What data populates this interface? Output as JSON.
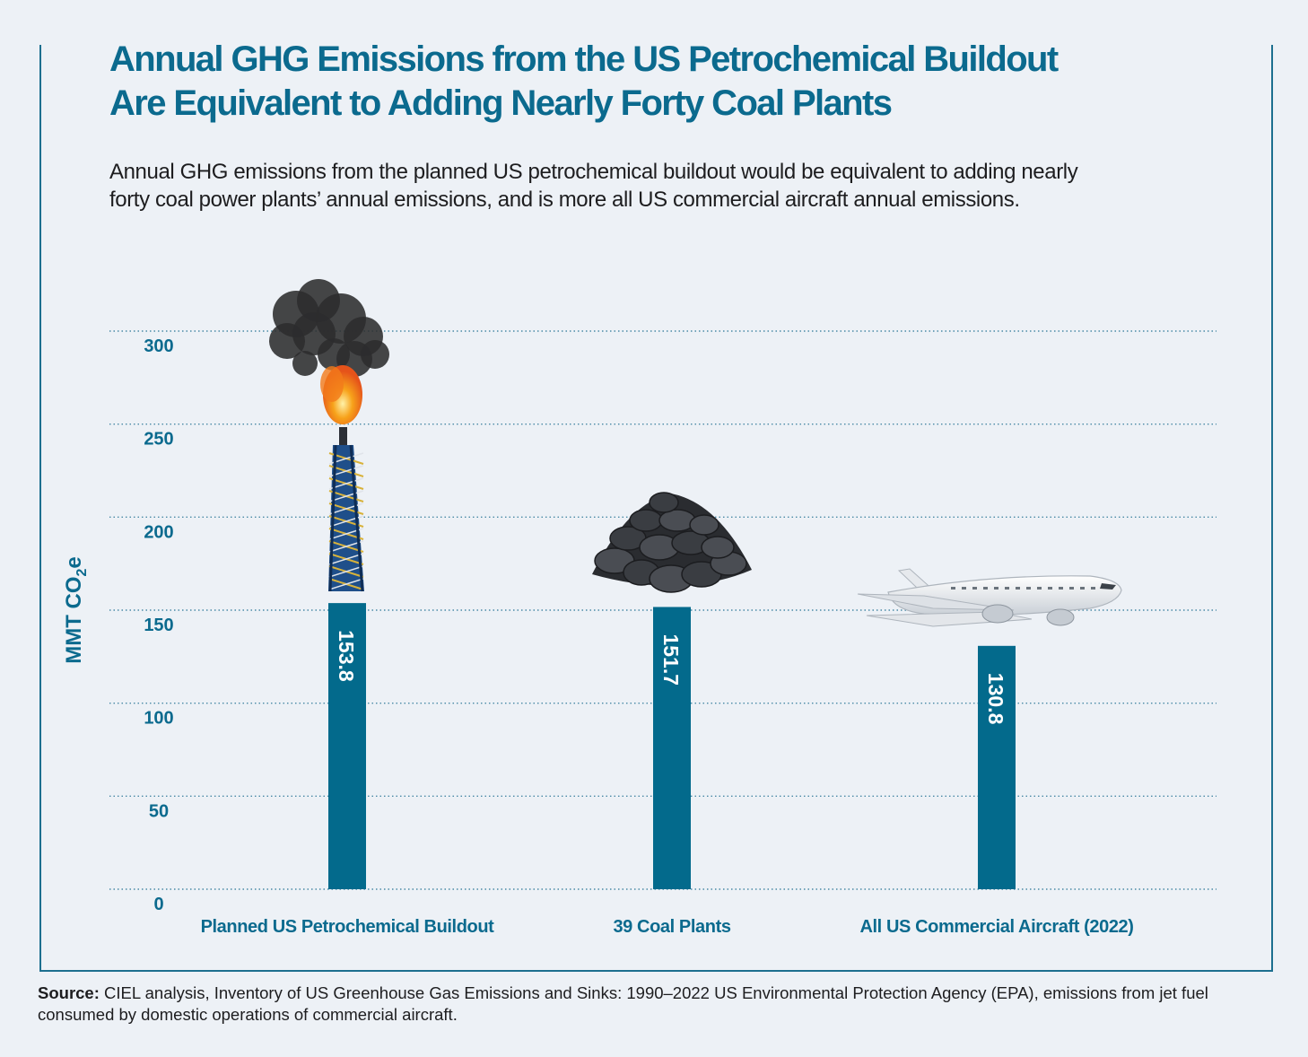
{
  "title_lines": [
    "Annual GHG Emissions from the US Petrochemical Buildout",
    "Are Equivalent to Adding Nearly Forty Coal Plants"
  ],
  "subtitle_lines": [
    "Annual GHG emissions from the planned US petrochemical buildout would be equivalent to adding nearly",
    "forty coal power plants’ annual emissions, and is more all US commercial aircraft annual emissions."
  ],
  "source": {
    "label": "Source:",
    "text": "CIEL analysis, Inventory of US Greenhouse Gas Emissions and Sinks: 1990–2022 US Environmental Protection Agency (EPA), emissions from jet fuel consumed by domestic operations of commercial aircraft."
  },
  "colors": {
    "bar": "#036a8c",
    "accent": "#0b6a8e",
    "grid": "#4a8aa6"
  },
  "chart_data": {
    "type": "bar",
    "categories": [
      "Planned US Petrochemical Buildout",
      "39 Coal Plants",
      "All US Commercial Aircraft (2022)"
    ],
    "values": [
      153.8,
      151.7,
      130.8
    ],
    "value_labels": [
      "153.8",
      "151.7",
      "130.8"
    ],
    "category_icons": [
      "gas-flare-tower-icon",
      "coal-pile-icon",
      "airplane-icon"
    ],
    "ylabel_main": "MMT CO",
    "ylabel_sub": "2",
    "ylabel_end": "e",
    "yticks": [
      0,
      50,
      100,
      150,
      200,
      250,
      300
    ],
    "ylim": [
      0,
      300
    ],
    "grid": true
  }
}
